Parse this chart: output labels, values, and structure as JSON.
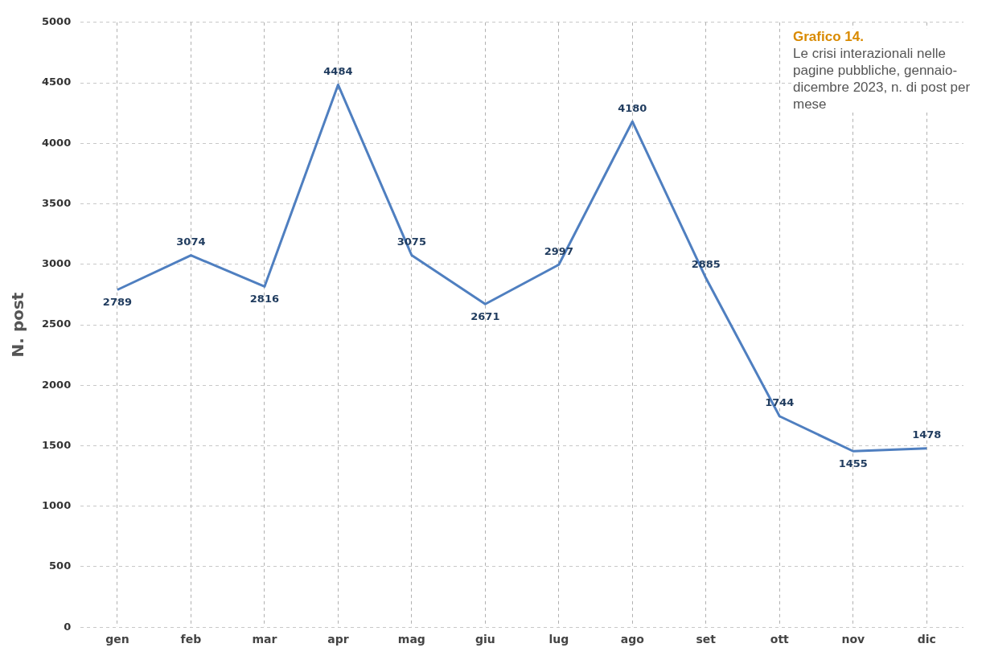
{
  "chart_data": {
    "type": "line",
    "title": "Grafico 14.",
    "subtitle": "Le crisi interazionali nelle pagine pubbliche, gennaio-dicembre 2023, n. di post per mese",
    "ylabel": "N. post",
    "categories": [
      "gen",
      "feb",
      "mar",
      "apr",
      "mag",
      "giu",
      "lug",
      "ago",
      "set",
      "ott",
      "nov",
      "dic"
    ],
    "series": [
      {
        "color": "#4f7fc0",
        "values": [
          2789,
          3074,
          2816,
          4484,
          3075,
          2671,
          2997,
          4180,
          2885,
          1744,
          1455,
          1478
        ]
      }
    ],
    "ylim": [
      0,
      5000
    ],
    "yticks": [
      0,
      500,
      1000,
      1500,
      2000,
      2500,
      3000,
      3500,
      4000,
      4500,
      5000
    ],
    "grid": true,
    "legend": false,
    "line_style": "solid",
    "data_labels": true
  }
}
